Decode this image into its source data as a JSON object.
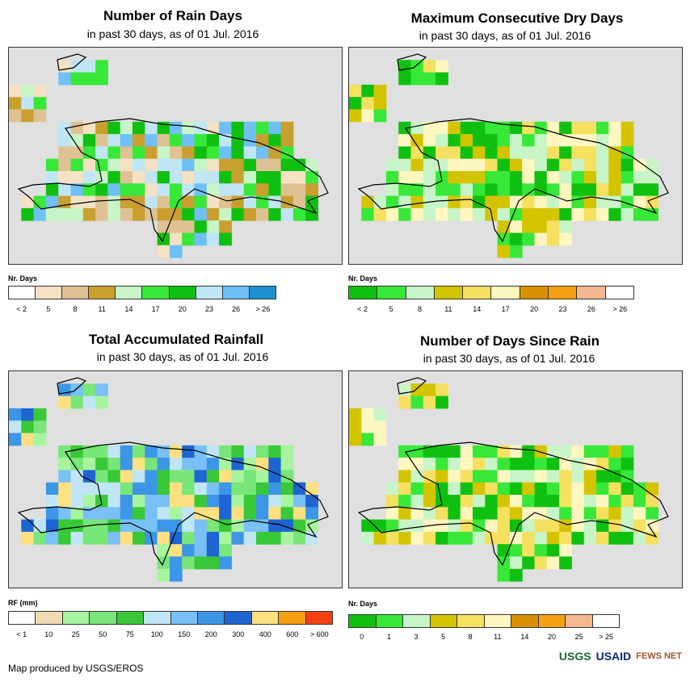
{
  "panels": [
    {
      "title": "Number of Rain Days",
      "subtitle": "in past 30 days, as of 01 Jul. 2016",
      "legend_title": "Nr. Days",
      "legend_colors": [
        "#ffffff",
        "#f5e2c4",
        "#dfc293",
        "#c9a030",
        "#c8f5c8",
        "#38e838",
        "#10c010",
        "#c0e6f5",
        "#6ec0f5",
        "#1e90d2"
      ],
      "legend_labels": [
        "< 2",
        "5",
        "8",
        "11",
        "14",
        "17",
        "20",
        "23",
        "26",
        "> 26"
      ]
    },
    {
      "title": "Maximum Consecutive Dry Days",
      "subtitle": "in past 30 days, as of 01 Jul. 2016",
      "legend_title": "Nr. Days",
      "legend_colors": [
        "#10c010",
        "#38e838",
        "#c8f5c8",
        "#d4c400",
        "#f5e060",
        "#fff6c0",
        "#d99000",
        "#f5a010",
        "#f5b890",
        "#ffffff"
      ],
      "legend_labels": [
        "< 2",
        "5",
        "8",
        "11",
        "14",
        "17",
        "20",
        "23",
        "26",
        "> 26"
      ]
    },
    {
      "title": "Total Accumulated Rainfall",
      "subtitle": "in past 30 days, as of 01 Jul. 2016",
      "legend_title": "RF (mm)",
      "legend_colors": [
        "#ffffff",
        "#f0dcb4",
        "#a8f5a0",
        "#78e678",
        "#38c838",
        "#c0e6f5",
        "#78c0f5",
        "#3c96e6",
        "#1e64d2",
        "#ffe080",
        "#f5a010",
        "#f54010"
      ],
      "legend_labels": [
        "< 1",
        "10",
        "25",
        "50",
        "75",
        "100",
        "150",
        "200",
        "300",
        "400",
        "600",
        "> 600"
      ]
    },
    {
      "title": "Number of Days Since Rain",
      "subtitle": "in past 30 days, as of 01 Jul. 2016",
      "legend_title": "Nr. Days",
      "legend_colors": [
        "#10c010",
        "#38e838",
        "#c8f5c8",
        "#d4c400",
        "#f5e060",
        "#fff6c0",
        "#d99000",
        "#f5a010",
        "#f5b890",
        "#ffffff"
      ],
      "legend_labels": [
        "0",
        "1",
        "3",
        "5",
        "8",
        "11",
        "14",
        "20",
        "25",
        "> 25"
      ]
    }
  ],
  "credit": "Map produced by USGS/EROS",
  "logos": [
    "USGS",
    "USAID",
    "FEWS NET"
  ]
}
